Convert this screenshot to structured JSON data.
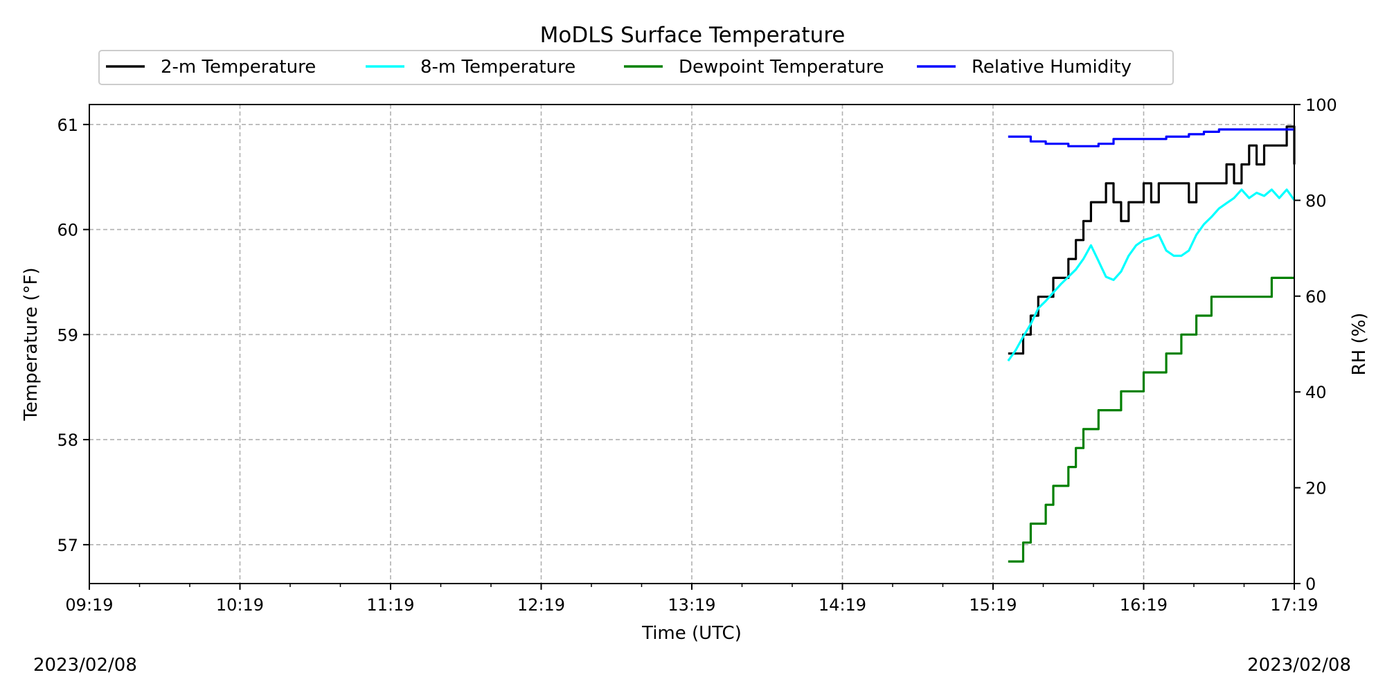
{
  "chart_data": {
    "type": "line",
    "title": "MoDLS Surface Temperature",
    "xlabel": "Time (UTC)",
    "ylabel": "Temperature (°F)",
    "ylabel_right": "RH (%)",
    "x_ticks": [
      "09:19",
      "10:19",
      "11:19",
      "12:19",
      "13:19",
      "14:19",
      "15:19",
      "16:19",
      "17:19"
    ],
    "xlim": [
      "09:19",
      "17:19"
    ],
    "ylim": [
      56.63,
      61.19
    ],
    "ylim_right": [
      0,
      100
    ],
    "y_ticks": [
      57,
      58,
      59,
      60,
      61
    ],
    "y_ticks_right": [
      0,
      20,
      40,
      60,
      80,
      100
    ],
    "grid": true,
    "legend_position": "top-center",
    "date_left": "2023/02/08",
    "date_right": "2023/02/08",
    "series": [
      {
        "name": "2-m Temperature",
        "color": "#000000",
        "axis": "left",
        "x": [
          "15:25",
          "15:28",
          "15:31",
          "15:34",
          "15:37",
          "15:40",
          "15:43",
          "15:46",
          "15:49",
          "15:52",
          "15:55",
          "15:58",
          "16:01",
          "16:04",
          "16:07",
          "16:10",
          "16:13",
          "16:16",
          "16:19",
          "16:22",
          "16:25",
          "16:28",
          "16:31",
          "16:34",
          "16:37",
          "16:40",
          "16:43",
          "16:46",
          "16:49",
          "16:52",
          "16:55",
          "16:58",
          "17:01",
          "17:04",
          "17:07",
          "17:10",
          "17:13",
          "17:16",
          "17:19"
        ],
        "y": [
          58.82,
          58.82,
          59.0,
          59.18,
          59.36,
          59.36,
          59.54,
          59.54,
          59.72,
          59.9,
          60.08,
          60.26,
          60.26,
          60.44,
          60.26,
          60.08,
          60.26,
          60.26,
          60.44,
          60.26,
          60.44,
          60.44,
          60.44,
          60.44,
          60.26,
          60.44,
          60.44,
          60.44,
          60.44,
          60.62,
          60.44,
          60.62,
          60.8,
          60.62,
          60.8,
          60.8,
          60.8,
          60.98,
          60.62
        ]
      },
      {
        "name": "8-m Temperature",
        "color": "#00ffff",
        "axis": "left",
        "x": [
          "15:25",
          "15:28",
          "15:31",
          "15:34",
          "15:37",
          "15:40",
          "15:43",
          "15:46",
          "15:49",
          "15:52",
          "15:55",
          "15:58",
          "16:01",
          "16:04",
          "16:07",
          "16:10",
          "16:13",
          "16:16",
          "16:19",
          "16:22",
          "16:25",
          "16:28",
          "16:31",
          "16:34",
          "16:37",
          "16:40",
          "16:43",
          "16:46",
          "16:49",
          "16:52",
          "16:55",
          "16:58",
          "17:01",
          "17:04",
          "17:07",
          "17:10",
          "17:13",
          "17:16",
          "17:19"
        ],
        "y": [
          58.75,
          58.85,
          58.98,
          59.1,
          59.25,
          59.32,
          59.4,
          59.48,
          59.55,
          59.62,
          59.72,
          59.85,
          59.7,
          59.55,
          59.52,
          59.6,
          59.75,
          59.85,
          59.9,
          59.92,
          59.95,
          59.8,
          59.75,
          59.75,
          59.8,
          59.95,
          60.05,
          60.12,
          60.2,
          60.25,
          60.3,
          60.38,
          60.3,
          60.35,
          60.32,
          60.38,
          60.3,
          60.38,
          60.28
        ]
      },
      {
        "name": "Dewpoint Temperature",
        "color": "#008000",
        "axis": "left",
        "x": [
          "15:25",
          "15:28",
          "15:31",
          "15:34",
          "15:37",
          "15:40",
          "15:43",
          "15:46",
          "15:49",
          "15:52",
          "15:55",
          "15:58",
          "16:01",
          "16:04",
          "16:07",
          "16:10",
          "16:13",
          "16:16",
          "16:19",
          "16:22",
          "16:25",
          "16:28",
          "16:31",
          "16:34",
          "16:37",
          "16:40",
          "16:43",
          "16:46",
          "16:49",
          "16:52",
          "16:55",
          "16:58",
          "17:01",
          "17:04",
          "17:07",
          "17:10",
          "17:13",
          "17:16",
          "17:19"
        ],
        "y": [
          56.84,
          56.84,
          57.02,
          57.2,
          57.2,
          57.38,
          57.56,
          57.56,
          57.74,
          57.92,
          58.1,
          58.1,
          58.28,
          58.28,
          58.28,
          58.46,
          58.46,
          58.46,
          58.64,
          58.64,
          58.64,
          58.82,
          58.82,
          59.0,
          59.0,
          59.18,
          59.18,
          59.36,
          59.36,
          59.36,
          59.36,
          59.36,
          59.36,
          59.36,
          59.36,
          59.54,
          59.54,
          59.54,
          59.54
        ]
      },
      {
        "name": "Relative Humidity",
        "color": "#0000ff",
        "axis": "right",
        "x": [
          "15:25",
          "15:28",
          "15:31",
          "15:34",
          "15:37",
          "15:40",
          "15:43",
          "15:46",
          "15:49",
          "15:52",
          "15:55",
          "15:58",
          "16:01",
          "16:04",
          "16:07",
          "16:10",
          "16:13",
          "16:16",
          "16:19",
          "16:22",
          "16:25",
          "16:28",
          "16:31",
          "16:34",
          "16:37",
          "16:40",
          "16:43",
          "16:46",
          "16:49",
          "16:52",
          "16:55",
          "16:58",
          "17:01",
          "17:04",
          "17:07",
          "17:10",
          "17:13",
          "17:16",
          "17:19"
        ],
        "y": [
          93.3,
          93.3,
          93.3,
          92.3,
          92.3,
          91.8,
          91.8,
          91.8,
          91.3,
          91.3,
          91.3,
          91.3,
          91.8,
          91.8,
          92.8,
          92.8,
          92.8,
          92.8,
          92.8,
          92.8,
          92.8,
          93.3,
          93.3,
          93.3,
          93.8,
          93.8,
          94.3,
          94.3,
          94.8,
          94.8,
          94.8,
          94.8,
          94.8,
          94.8,
          94.8,
          94.8,
          94.8,
          94.8,
          94.8
        ]
      }
    ]
  }
}
